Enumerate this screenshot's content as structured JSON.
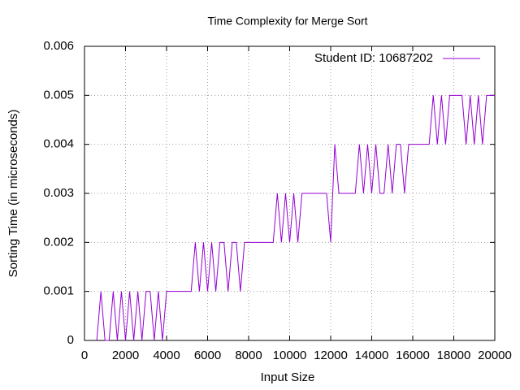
{
  "chart_data": {
    "type": "line",
    "title": "Time Complexity for Merge Sort",
    "x_label": "Input Size",
    "y_label": "Sorting Time (in microseconds)",
    "xlim": [
      0,
      20000
    ],
    "xticks": [
      0,
      2000,
      4000,
      6000,
      8000,
      10000,
      12000,
      14000,
      16000,
      18000,
      20000
    ],
    "ylim": [
      0,
      0.006
    ],
    "yticks": [
      0,
      0.001,
      0.002,
      0.003,
      0.004,
      0.005,
      0.006
    ],
    "grid": true,
    "legend": "top-right",
    "x": [
      600,
      800,
      1000,
      1200,
      1400,
      1600,
      1800,
      2000,
      2200,
      2400,
      2600,
      2800,
      3000,
      3200,
      3400,
      3600,
      3800,
      4000,
      4200,
      4400,
      4600,
      4800,
      5000,
      5200,
      5400,
      5600,
      5800,
      6000,
      6200,
      6400,
      6600,
      6800,
      7000,
      7200,
      7400,
      7600,
      7800,
      8000,
      8200,
      8400,
      8600,
      8800,
      9000,
      9200,
      9400,
      9600,
      9800,
      10000,
      10200,
      10400,
      10600,
      10800,
      11000,
      11200,
      11400,
      11600,
      11800,
      12000,
      12200,
      12400,
      12600,
      12800,
      13000,
      13200,
      13400,
      13600,
      13800,
      14000,
      14200,
      14400,
      14600,
      14800,
      15000,
      15200,
      15400,
      15600,
      15800,
      16000,
      16200,
      16400,
      16600,
      16800,
      17000,
      17200,
      17400,
      17600,
      17800,
      18000,
      18200,
      18400,
      18600,
      18800,
      19000,
      19200,
      19400,
      19600,
      19800,
      20000
    ],
    "series": [
      {
        "name": "Student ID: 10687202",
        "color": "#9400d3",
        "values": [
          0,
          0.001,
          0,
          0,
          0.001,
          0,
          0.001,
          0,
          0.001,
          0,
          0.001,
          0,
          0.001,
          0.001,
          0,
          0.001,
          0,
          0.001,
          0.001,
          0.001,
          0.001,
          0.001,
          0.001,
          0.001,
          0.002,
          0.001,
          0.002,
          0.001,
          0.002,
          0.001,
          0.002,
          0.002,
          0.001,
          0.002,
          0.002,
          0.001,
          0.002,
          0.002,
          0.002,
          0.002,
          0.002,
          0.002,
          0.002,
          0.002,
          0.003,
          0.002,
          0.003,
          0.002,
          0.003,
          0.002,
          0.003,
          0.003,
          0.003,
          0.003,
          0.003,
          0.003,
          0.003,
          0.002,
          0.004,
          0.003,
          0.003,
          0.003,
          0.003,
          0.003,
          0.004,
          0.003,
          0.004,
          0.003,
          0.004,
          0.003,
          0.003,
          0.004,
          0.003,
          0.004,
          0.004,
          0.003,
          0.004,
          0.004,
          0.004,
          0.004,
          0.004,
          0.004,
          0.005,
          0.004,
          0.005,
          0.004,
          0.005,
          0.005,
          0.005,
          0.005,
          0.004,
          0.005,
          0.004,
          0.005,
          0.004,
          0.005,
          0.005,
          0.005
        ]
      }
    ]
  }
}
